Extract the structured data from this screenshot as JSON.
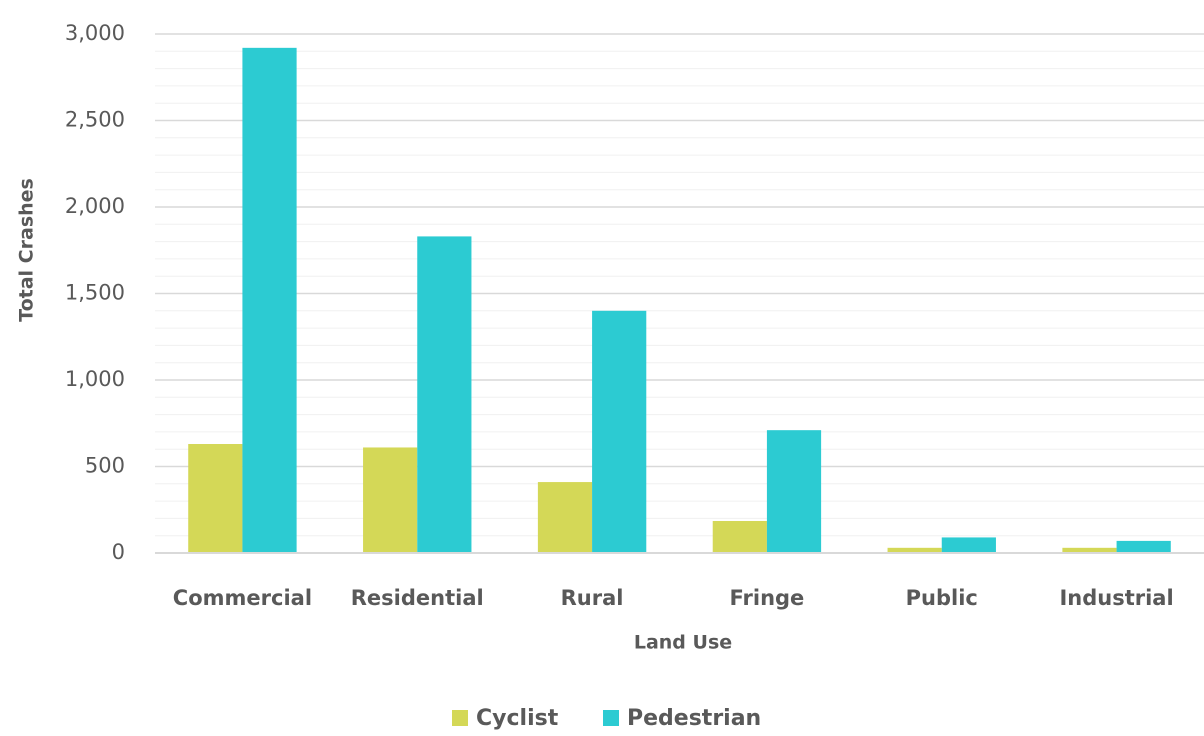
{
  "chart_data": {
    "type": "bar",
    "x_label": "Land Use",
    "y_label": "Total Crashes",
    "categories": [
      "Commercial",
      "Residential",
      "Rural",
      "Fringe",
      "Public",
      "Industrial"
    ],
    "series": [
      {
        "name": "Cyclist",
        "color": "#d4d857",
        "values": [
          630,
          610,
          410,
          185,
          30,
          30
        ]
      },
      {
        "name": "Pedestrian",
        "color": "#2ccbd2",
        "values": [
          2920,
          1830,
          1400,
          710,
          90,
          70
        ]
      }
    ],
    "ylim": [
      0,
      3000
    ],
    "yticks": [
      0,
      500,
      {
        "value": 1000,
        "label": "1,000"
      },
      {
        "value": 1500,
        "label": "1,500"
      },
      {
        "value": 2000,
        "label": "2,000"
      },
      {
        "value": 2500,
        "label": "2,500"
      },
      {
        "value": 3000,
        "label": "3,000"
      }
    ],
    "grid": true,
    "minor_grid": true,
    "legend": "bottom"
  }
}
